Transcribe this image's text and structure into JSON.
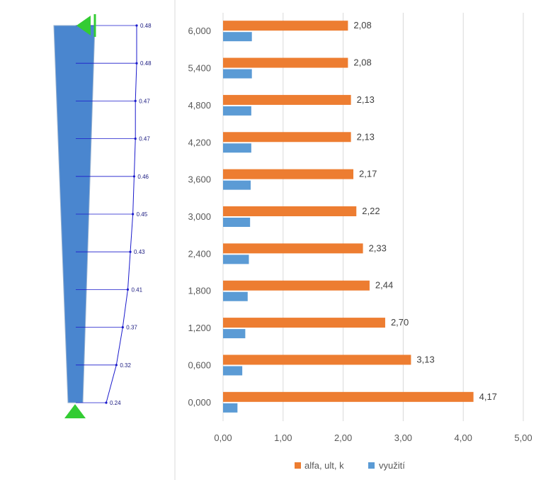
{
  "beam_diagram": {
    "member_color": "#4a86cf",
    "curve_color": "#1a1acc",
    "support_color": "#33cc33",
    "labels": [
      "0.48",
      "0.48",
      "0.47",
      "0.47",
      "0.46",
      "0.45",
      "0.43",
      "0.41",
      "0.37",
      "0.32",
      "0.24"
    ]
  },
  "chart_data": {
    "type": "bar",
    "orientation": "horizontal",
    "categories": [
      "0,000",
      "0,600",
      "1,200",
      "1,800",
      "2,400",
      "3,000",
      "3,600",
      "4,200",
      "4,800",
      "5,400",
      "6,000"
    ],
    "series": [
      {
        "name": "alfa, ult, k",
        "color": "#ed7d31",
        "values": [
          4.17,
          3.13,
          2.7,
          2.44,
          2.33,
          2.22,
          2.17,
          2.13,
          2.13,
          2.08,
          2.08
        ],
        "labels": [
          "4,17",
          "3,13",
          "2,70",
          "2,44",
          "2,33",
          "2,22",
          "2,17",
          "2,13",
          "2,13",
          "2,08",
          "2,08"
        ]
      },
      {
        "name": "využití",
        "color": "#5b9bd5",
        "values": [
          0.24,
          0.32,
          0.37,
          0.41,
          0.43,
          0.45,
          0.46,
          0.47,
          0.47,
          0.48,
          0.48
        ]
      }
    ],
    "xlim": [
      0,
      5
    ],
    "xticks": [
      "0,00",
      "1,00",
      "2,00",
      "3,00",
      "4,00",
      "5,00"
    ],
    "grid": "vertical",
    "legend_position": "bottom"
  }
}
